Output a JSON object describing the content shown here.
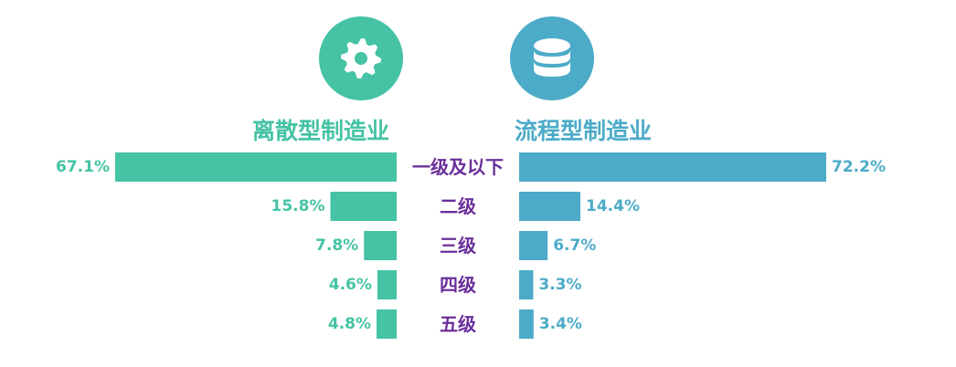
{
  "colors": {
    "discrete": "#45c3a4",
    "process": "#4cabc8",
    "category": "#6a2f9b"
  },
  "icons": {
    "discrete": "gear-icon",
    "process": "database-icon"
  },
  "chart_data": {
    "type": "bar",
    "orientation": "horizontal-butterfly",
    "categories": [
      "一级及以下",
      "二级",
      "三级",
      "四级",
      "五级"
    ],
    "series": [
      {
        "name": "离散型制造业",
        "values": [
          67.1,
          15.8,
          7.8,
          4.6,
          4.8
        ],
        "labels": [
          "67.1%",
          "15.8%",
          "7.8%",
          "4.6%",
          "4.8%"
        ]
      },
      {
        "name": "流程型制造业",
        "values": [
          72.2,
          14.4,
          6.7,
          3.3,
          3.4
        ],
        "labels": [
          "72.2%",
          "14.4%",
          "6.7%",
          "3.3%",
          "3.4%"
        ]
      }
    ],
    "unit": "%",
    "grid": false,
    "legend": "top"
  }
}
